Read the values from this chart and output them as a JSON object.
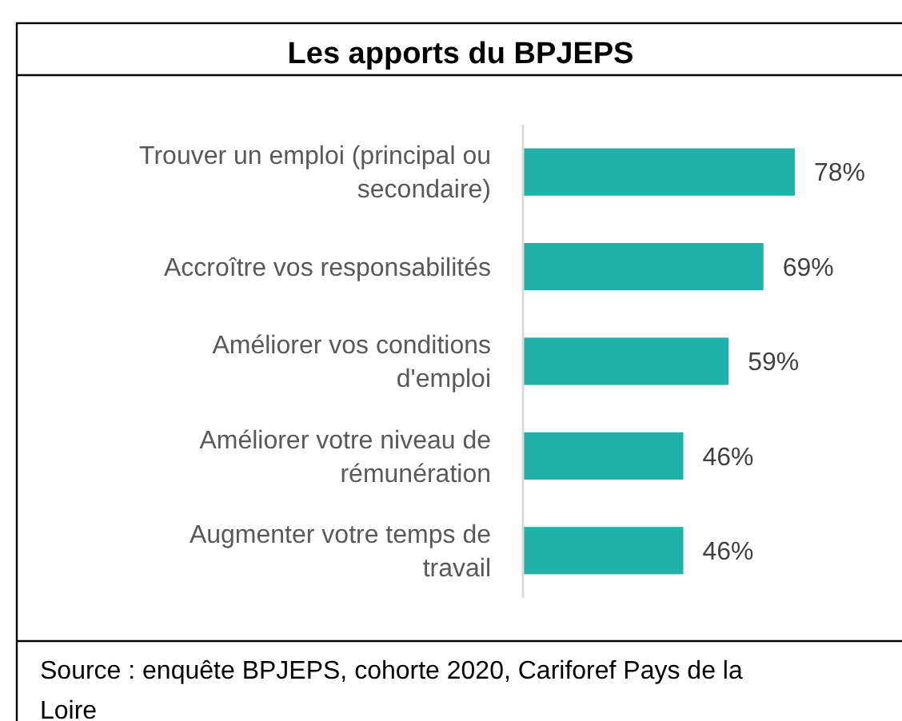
{
  "chart_data": {
    "type": "bar",
    "orientation": "horizontal",
    "title": "Les apports du BPJEPS",
    "categories": [
      "Trouver un emploi (principal ou secondaire)",
      "Accroître vos responsabilités",
      "Améliorer vos conditions d'emploi",
      "Améliorer votre niveau de rémunération",
      "Augmenter votre temps de travail"
    ],
    "values": [
      78,
      69,
      59,
      46,
      46
    ],
    "value_labels": [
      "78%",
      "69%",
      "59%",
      "46%",
      "46%"
    ],
    "color": "#20b2aa",
    "tick_labels": "y",
    "annotations": [
      "Source : enquête BPJEPS, cohorte 2020, Cariforef Pays de la Loire"
    ]
  }
}
